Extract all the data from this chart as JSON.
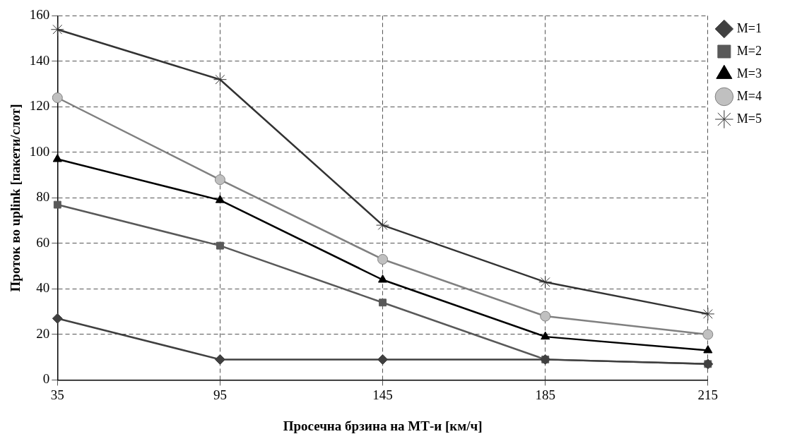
{
  "chart_data": {
    "type": "line",
    "xlabel": "Просечна брзина на МТ-и [км/ч]",
    "ylabel": "Проток во uplink [пакети/слот]",
    "categories": [
      "35",
      "95",
      "145",
      "185",
      "215"
    ],
    "series": [
      {
        "name": "M=1",
        "color": "#404040",
        "marker": "diamond",
        "values": [
          27,
          9,
          9,
          9,
          7
        ]
      },
      {
        "name": "M=2",
        "color": "#595959",
        "marker": "square",
        "values": [
          77,
          59,
          34,
          9,
          7
        ]
      },
      {
        "name": "M=3",
        "color": "#000000",
        "marker": "triangle",
        "values": [
          97,
          79,
          44,
          19,
          13
        ]
      },
      {
        "name": "M=4",
        "color": "#808080",
        "marker": "circle",
        "values": [
          124,
          88,
          53,
          28,
          20
        ]
      },
      {
        "name": "M=5",
        "color": "#333333",
        "marker": "cross",
        "values": [
          154,
          132,
          68,
          43,
          29
        ]
      }
    ],
    "ylim": [
      0,
      160
    ],
    "yticks": [
      0,
      20,
      40,
      60,
      80,
      100,
      120,
      140,
      160
    ],
    "grid": true,
    "legend": "top right",
    "line_style": "solid"
  }
}
